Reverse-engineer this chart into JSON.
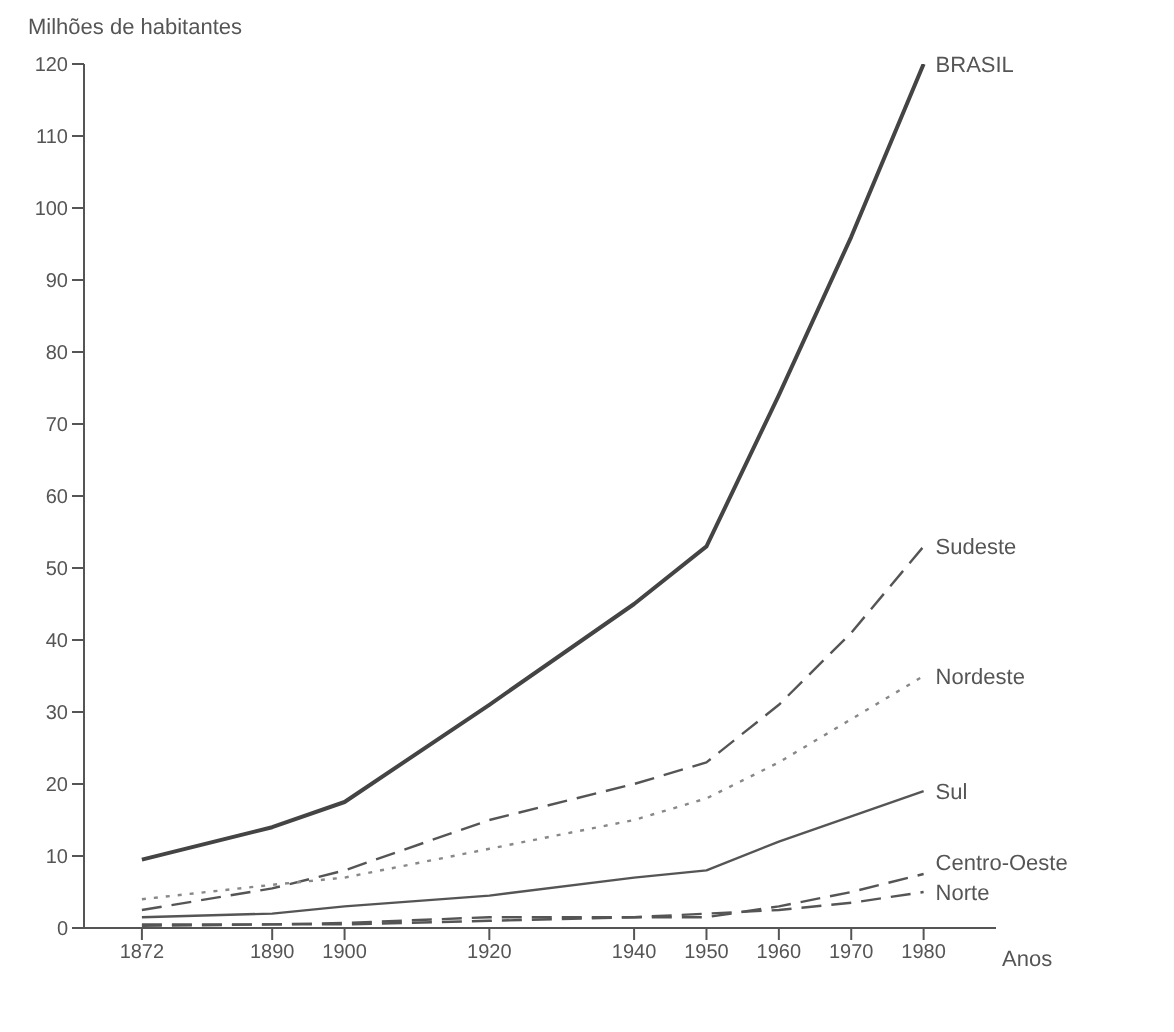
{
  "chart_data": {
    "type": "line",
    "ylabel": "Milhões de habitantes",
    "xlabel": "Anos",
    "x": [
      1872,
      1890,
      1900,
      1920,
      1940,
      1950,
      1960,
      1970,
      1980
    ],
    "series": [
      {
        "name": "BRASIL",
        "color": "#444444",
        "line_style": "solid",
        "values": [
          9.5,
          14,
          17.5,
          31,
          45,
          53,
          74,
          96,
          120
        ]
      },
      {
        "name": "Sudeste",
        "color": "#555555",
        "line_style": "dashed",
        "values": [
          2.5,
          5.5,
          8,
          15,
          20,
          23,
          31,
          41,
          53
        ]
      },
      {
        "name": "Nordeste",
        "color": "#888888",
        "line_style": "dotted",
        "values": [
          4,
          6,
          7,
          11,
          15,
          18,
          23,
          29,
          35
        ]
      },
      {
        "name": "Sul",
        "color": "#555555",
        "line_style": "solid",
        "values": [
          1.5,
          2,
          3,
          4.5,
          7,
          8,
          12,
          15.5,
          19
        ]
      },
      {
        "name": "Centro-Oeste",
        "color": "#555555",
        "line_style": "dashed",
        "values": [
          0.5,
          0.5,
          0.5,
          1,
          1.5,
          1.5,
          3,
          5,
          7.5
        ]
      },
      {
        "name": "Norte",
        "color": "#555555",
        "line_style": "dashed",
        "values": [
          0.3,
          0.5,
          0.7,
          1.5,
          1.5,
          2,
          2.5,
          3.5,
          5
        ]
      }
    ],
    "xlim": [
      1864,
      1990
    ],
    "xticks": [
      1872,
      1890,
      1900,
      1920,
      1940,
      1950,
      1960,
      1970,
      1980
    ],
    "ylim": [
      0,
      120
    ],
    "yticks": [
      0,
      10,
      20,
      30,
      40,
      50,
      60,
      70,
      80,
      90,
      100,
      110,
      120
    ],
    "grid": false,
    "legend": false,
    "marker": "none"
  }
}
